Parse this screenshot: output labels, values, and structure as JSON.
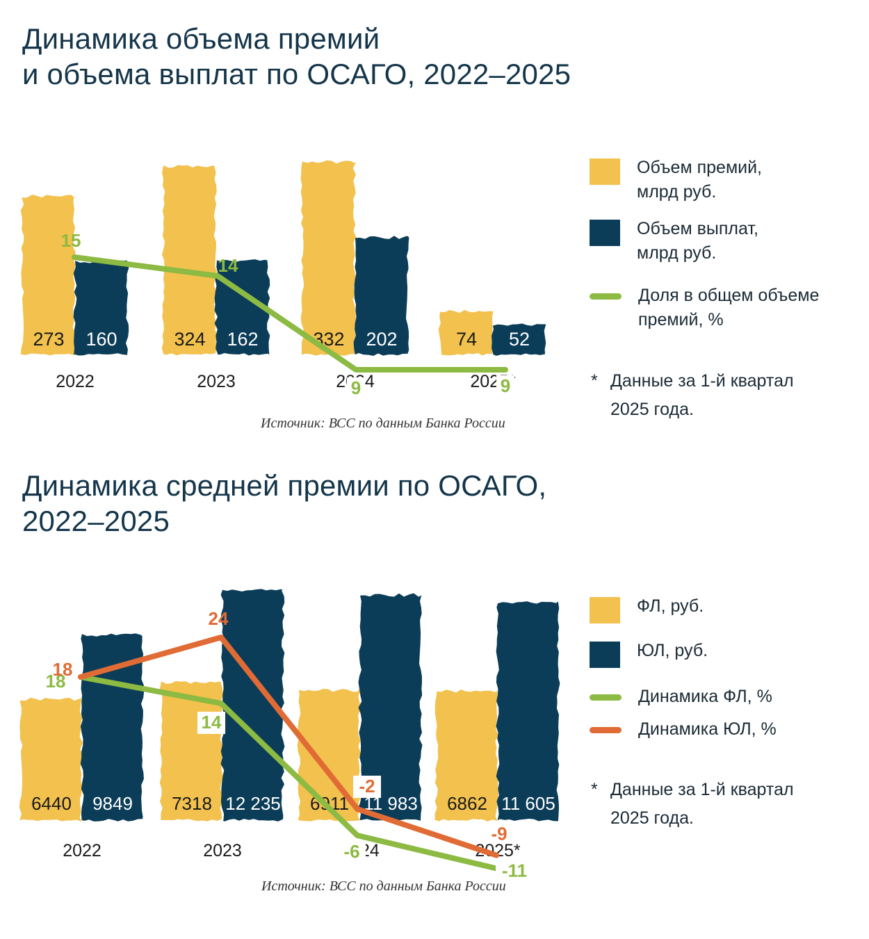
{
  "colors": {
    "yellow": "#f2c14e",
    "navy": "#0c3d58",
    "green": "#8cba42",
    "orange": "#e06b35",
    "title": "#14354a"
  },
  "chart1": {
    "title_line1": "Динамика объема премий",
    "title_line2": "и объема выплат по ОСАГО, 2022–2025",
    "legend": {
      "premiums": "Объем премий,\nмлрд руб.",
      "payouts": "Объем выплат,\nмлрд руб.",
      "share": "Доля в общем объеме\nпремий, %"
    },
    "footnote_star": "*",
    "footnote": "Данные за 1-й квартал\n2025 года.",
    "source": "Источник: ВСС по данным Банка России"
  },
  "chart2": {
    "title_line1": "Динамика средней премии по ОСАГО,",
    "title_line2": "2022–2025",
    "legend": {
      "fl": "ФЛ, руб.",
      "ul": "ЮЛ, руб.",
      "fl_dyn": "Динамика ФЛ, %",
      "ul_dyn": "Динамика ЮЛ, %"
    },
    "footnote_star": "*",
    "footnote": "Данные за 1-й квартал\n2025 года.",
    "source": "Источник: ВСС по данным Банка России"
  },
  "chart_data": [
    {
      "type": "bar",
      "title": "Динамика объема премий и объема выплат по ОСАГО, 2022–2025",
      "categories": [
        "2022",
        "2023",
        "2024",
        "2025*"
      ],
      "series": [
        {
          "name": "Объем премий, млрд руб.",
          "kind": "bar",
          "color": "#f2c14e",
          "values": [
            273,
            324,
            332,
            74
          ],
          "labels": [
            "273",
            "324",
            "332",
            "74"
          ]
        },
        {
          "name": "Объем выплат, млрд руб.",
          "kind": "bar",
          "color": "#0c3d58",
          "values": [
            160,
            162,
            202,
            52
          ],
          "labels": [
            "160",
            "162",
            "202",
            "52"
          ]
        },
        {
          "name": "Доля в общем объеме премий, %",
          "kind": "line",
          "color": "#8cba42",
          "values": [
            15,
            14,
            9,
            9
          ],
          "labels": [
            "15",
            "14",
            "9",
            "9"
          ]
        }
      ],
      "ylim": [
        0,
        350
      ],
      "line_ylim": [
        0,
        30
      ],
      "legend_position": "right"
    },
    {
      "type": "bar",
      "title": "Динамика средней премии по ОСАГО, 2022–2025",
      "categories": [
        "2022",
        "2023",
        "2024",
        "2025*"
      ],
      "series": [
        {
          "name": "ФЛ, руб.",
          "kind": "bar",
          "color": "#f2c14e",
          "values": [
            6440,
            7318,
            6911,
            6862
          ],
          "labels": [
            "6440",
            "7318",
            "6911",
            "6862"
          ]
        },
        {
          "name": "ЮЛ, руб.",
          "kind": "bar",
          "color": "#0c3d58",
          "values": [
            9849,
            12235,
            11983,
            11605
          ],
          "labels": [
            "9849",
            "12 235",
            "11 983",
            "11 605"
          ]
        },
        {
          "name": "Динамика ФЛ, %",
          "kind": "line",
          "color": "#8cba42",
          "values": [
            18,
            14,
            -6,
            -11
          ],
          "labels": [
            "18",
            "14",
            "-6",
            "-11"
          ]
        },
        {
          "name": "Динамика ЮЛ, %",
          "kind": "line",
          "color": "#e06b35",
          "values": [
            18,
            24,
            -2,
            -9
          ],
          "labels": [
            "18",
            "24",
            "-2",
            "-9"
          ]
        }
      ],
      "ylim": [
        0,
        13500
      ],
      "line_ylim": [
        -20,
        40
      ],
      "legend_position": "right"
    }
  ]
}
